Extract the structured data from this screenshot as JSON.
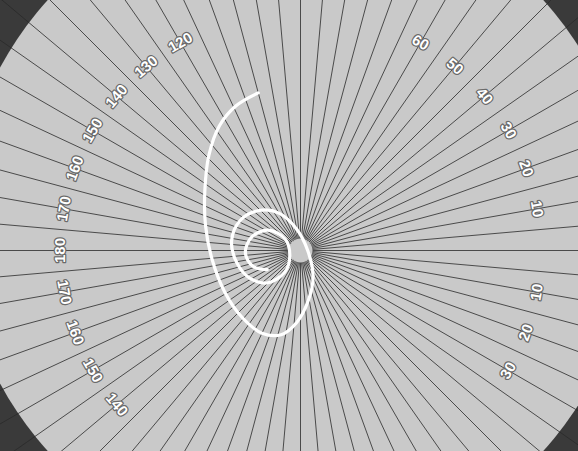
{
  "chart_data": {
    "type": "polar",
    "rlim": [
      0,
      1
    ],
    "grid": true,
    "angle_ticks": [
      10,
      20,
      30,
      40,
      50,
      60,
      120,
      130,
      140,
      150,
      160,
      170,
      180,
      {
        "value": -10,
        "label": "10"
      },
      {
        "value": -20,
        "label": "20"
      },
      {
        "value": -30,
        "label": "30"
      },
      {
        "value": -140,
        "label": "140"
      },
      {
        "value": -150,
        "label": "150"
      },
      {
        "value": -160,
        "label": "160"
      },
      {
        "value": -170,
        "label": "170"
      }
    ],
    "color": "#ffffff",
    "points": {
      "angle": [
        105,
        114,
        123,
        134,
        148,
        165,
        -174,
        -151,
        -131,
        -115,
        -103,
        -93,
        -81,
        -64,
        0,
        100,
        120,
        136,
        153,
        172,
        -169,
        -151,
        -135,
        -126,
        -153,
        143,
        148,
        164,
        -178,
        -162,
        -150
      ],
      "radius": [
        0.68,
        0.66,
        0.62,
        0.55,
        0.47,
        0.41,
        0.37,
        0.36,
        0.37,
        0.38,
        0.36,
        0.3,
        0.21,
        0.12,
        0.03,
        0.09,
        0.18,
        0.24,
        0.28,
        0.29,
        0.27,
        0.24,
        0.19,
        0.11,
        0.05,
        0.08,
        0.16,
        0.21,
        0.23,
        0.21,
        0.16
      ]
    }
  }
}
